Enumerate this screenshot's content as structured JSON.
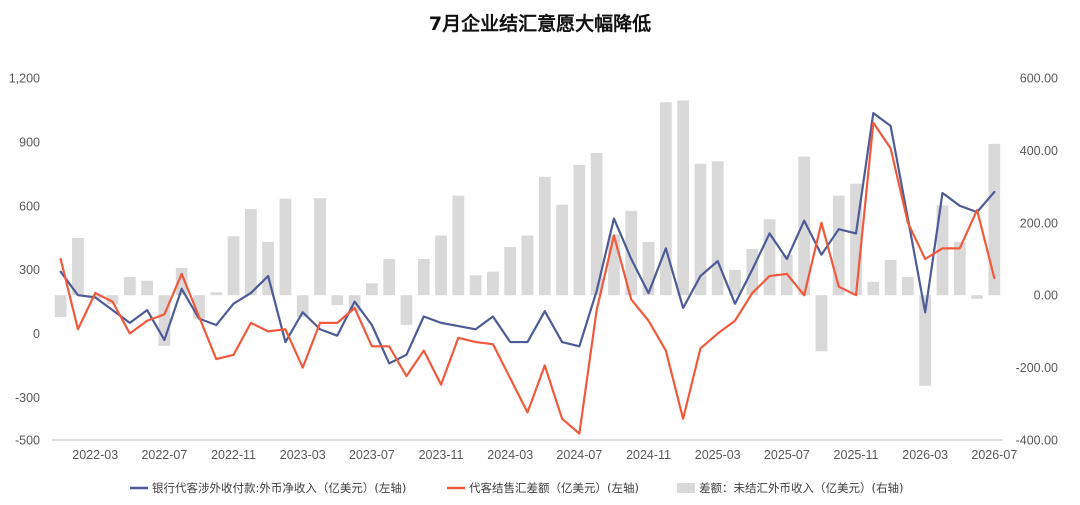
{
  "chart_data": {
    "type": "bar+line",
    "title": "7月企业结汇意愿大幅降低",
    "x_tick_labels": [
      "2022-03",
      "2022-07",
      "2022-11",
      "2023-03",
      "2023-07",
      "2023-11",
      "2024-03",
      "2024-07",
      "2024-11",
      "2025-03",
      "2025-07",
      "2025-11",
      "2026-03",
      "2026-07"
    ],
    "y_left": {
      "range": [
        -500,
        1200
      ],
      "ticks": [
        "-500",
        "-300",
        "0",
        "300",
        "600",
        "900",
        "1,200"
      ],
      "tick_values": [
        -500,
        -300,
        0,
        300,
        600,
        900,
        1200
      ]
    },
    "y_right": {
      "range": [
        -400,
        600
      ],
      "ticks": [
        "-400.00",
        "-200.00",
        "0.00",
        "200.00",
        "400.00",
        "600.00"
      ],
      "tick_values": [
        -400,
        -200,
        0,
        200,
        400,
        600
      ]
    },
    "x": [
      "2022-01",
      "2022-02",
      "2022-03",
      "2022-04",
      "2022-05",
      "2022-06",
      "2022-07",
      "2022-08",
      "2022-09",
      "2022-10",
      "2022-11",
      "2022-12",
      "2023-01",
      "2023-02",
      "2023-03",
      "2023-04",
      "2023-05",
      "2023-06",
      "2023-07",
      "2023-08",
      "2023-09",
      "2023-10",
      "2023-11",
      "2023-12",
      "2024-01",
      "2024-02",
      "2024-03",
      "2024-04",
      "2024-05",
      "2024-06",
      "2024-07",
      "2024-08",
      "2024-09",
      "2024-10",
      "2024-11",
      "2024-12",
      "2025-01",
      "2025-02",
      "2025-03",
      "2025-04",
      "2025-05",
      "2025-06",
      "2025-07",
      "2025-08",
      "2025-09",
      "2025-10",
      "2025-11",
      "2025-12",
      "2026-01",
      "2026-02",
      "2026-03",
      "2026-04",
      "2026-05",
      "2026-06",
      "2026-07"
    ],
    "series": [
      {
        "name": "银行代客涉外收付款:外币净收入（亿美元）(左轴)",
        "type": "line",
        "axis": "left",
        "color": "#4e5b96",
        "values": [
          290,
          180,
          170,
          110,
          50,
          110,
          -30,
          210,
          70,
          40,
          140,
          190,
          270,
          -40,
          100,
          20,
          -10,
          150,
          40,
          -140,
          -100,
          80,
          50,
          35,
          20,
          80,
          -40,
          -40,
          105,
          -40,
          -60,
          200,
          540,
          350,
          190,
          400,
          120,
          270,
          340,
          140,
          300,
          470,
          350,
          530,
          370,
          490,
          470,
          1035,
          975,
          540,
          100,
          660,
          600,
          570,
          665
        ]
      },
      {
        "name": "代客结售汇差额（亿美元）(左轴)",
        "type": "line",
        "axis": "left",
        "color": "#f05a3c",
        "values": [
          350,
          20,
          190,
          150,
          0,
          60,
          90,
          280,
          80,
          -120,
          -100,
          50,
          10,
          20,
          -160,
          50,
          50,
          120,
          -60,
          -60,
          -200,
          -80,
          -240,
          -20,
          -40,
          -50,
          -210,
          -370,
          -150,
          -400,
          -470,
          110,
          460,
          160,
          60,
          -80,
          -400,
          -70,
          0,
          60,
          190,
          270,
          280,
          180,
          520,
          220,
          180,
          990,
          870,
          520,
          350,
          400,
          400,
          580,
          260
        ]
      },
      {
        "name": "差额：未结汇外币收入（亿美元）(右轴)",
        "type": "bar",
        "axis": "right",
        "color": "#d9d9d9",
        "values": [
          -60,
          158,
          -10,
          -25,
          50,
          40,
          -140,
          75,
          -65,
          8,
          163,
          238,
          147,
          267,
          -60,
          268,
          -27,
          -45,
          33,
          100,
          -82,
          100,
          165,
          275,
          55,
          65,
          133,
          165,
          327,
          250,
          360,
          393,
          168,
          233,
          147,
          533,
          538,
          363,
          370,
          70,
          128,
          210,
          112,
          383,
          -155,
          275,
          308,
          37,
          97,
          50,
          -250,
          248,
          147,
          -10,
          418
        ]
      }
    ],
    "legend_position": "bottom",
    "grid": false
  }
}
